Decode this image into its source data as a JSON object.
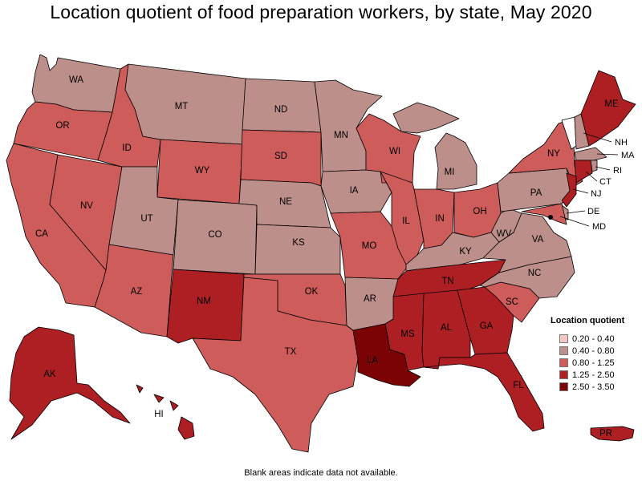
{
  "title": "Location quotient of food preparation workers, by state, May 2020",
  "note": "Blank areas indicate data not available.",
  "legend": {
    "title": "Location quotient",
    "items": [
      {
        "label": "0.20 - 0.40",
        "color": "#f5c6c6"
      },
      {
        "label": "0.40 - 0.80",
        "color": "#bd8f8b"
      },
      {
        "label": "0.80 - 1.25",
        "color": "#cd5c5a"
      },
      {
        "label": "1.25 - 2.50",
        "color": "#ad1f23"
      },
      {
        "label": "2.50 - 3.50",
        "color": "#7b0306"
      }
    ]
  },
  "chart_data": {
    "type": "choropleth",
    "title": "Location quotient of food preparation workers, by state, May 2020",
    "legend_title": "Location quotient",
    "legend_placement": "bottom-right",
    "classes": [
      "0.20 - 0.40",
      "0.40 - 0.80",
      "0.80 - 1.25",
      "1.25 - 2.50",
      "2.50 - 3.50"
    ],
    "states": [
      {
        "id": "WA",
        "class": "0.40 - 0.80"
      },
      {
        "id": "OR",
        "class": "0.80 - 1.25"
      },
      {
        "id": "CA",
        "class": "0.80 - 1.25"
      },
      {
        "id": "NV",
        "class": "0.80 - 1.25"
      },
      {
        "id": "ID",
        "class": "0.80 - 1.25"
      },
      {
        "id": "MT",
        "class": "0.40 - 0.80"
      },
      {
        "id": "WY",
        "class": "0.80 - 1.25"
      },
      {
        "id": "UT",
        "class": "0.40 - 0.80"
      },
      {
        "id": "CO",
        "class": "0.40 - 0.80"
      },
      {
        "id": "AZ",
        "class": "0.80 - 1.25"
      },
      {
        "id": "NM",
        "class": "1.25 - 2.50"
      },
      {
        "id": "ND",
        "class": "0.40 - 0.80"
      },
      {
        "id": "SD",
        "class": "0.80 - 1.25"
      },
      {
        "id": "NE",
        "class": "0.40 - 0.80"
      },
      {
        "id": "KS",
        "class": "0.40 - 0.80"
      },
      {
        "id": "OK",
        "class": "0.80 - 1.25"
      },
      {
        "id": "TX",
        "class": "0.80 - 1.25"
      },
      {
        "id": "MN",
        "class": "0.40 - 0.80"
      },
      {
        "id": "IA",
        "class": "0.40 - 0.80"
      },
      {
        "id": "MO",
        "class": "0.80 - 1.25"
      },
      {
        "id": "AR",
        "class": "0.40 - 0.80"
      },
      {
        "id": "LA",
        "class": "2.50 - 3.50"
      },
      {
        "id": "WI",
        "class": "0.80 - 1.25"
      },
      {
        "id": "IL",
        "class": "0.80 - 1.25"
      },
      {
        "id": "MI",
        "class": "0.40 - 0.80"
      },
      {
        "id": "IN",
        "class": "0.80 - 1.25"
      },
      {
        "id": "OH",
        "class": "0.80 - 1.25"
      },
      {
        "id": "KY",
        "class": "0.40 - 0.80"
      },
      {
        "id": "TN",
        "class": "1.25 - 2.50"
      },
      {
        "id": "MS",
        "class": "1.25 - 2.50"
      },
      {
        "id": "AL",
        "class": "1.25 - 2.50"
      },
      {
        "id": "GA",
        "class": "1.25 - 2.50"
      },
      {
        "id": "FL",
        "class": "1.25 - 2.50"
      },
      {
        "id": "SC",
        "class": "0.80 - 1.25"
      },
      {
        "id": "NC",
        "class": "0.40 - 0.80"
      },
      {
        "id": "VA",
        "class": "0.40 - 0.80"
      },
      {
        "id": "WV",
        "class": "0.40 - 0.80"
      },
      {
        "id": "PA",
        "class": "0.40 - 0.80"
      },
      {
        "id": "NY",
        "class": "0.80 - 1.25"
      },
      {
        "id": "VT",
        "class": ""
      },
      {
        "id": "NH",
        "class": "0.40 - 0.80"
      },
      {
        "id": "ME",
        "class": "1.25 - 2.50"
      },
      {
        "id": "MA",
        "class": "0.40 - 0.80"
      },
      {
        "id": "RI",
        "class": "0.40 - 0.80"
      },
      {
        "id": "CT",
        "class": "1.25 - 2.50"
      },
      {
        "id": "NJ",
        "class": "1.25 - 2.50"
      },
      {
        "id": "DE",
        "class": "0.40 - 0.80"
      },
      {
        "id": "MD",
        "class": "0.80 - 1.25"
      },
      {
        "id": "DC",
        "class": "1.25 - 2.50"
      },
      {
        "id": "AK",
        "class": "1.25 - 2.50"
      },
      {
        "id": "HI",
        "class": "1.25 - 2.50"
      },
      {
        "id": "PR",
        "class": "1.25 - 2.50"
      }
    ]
  }
}
